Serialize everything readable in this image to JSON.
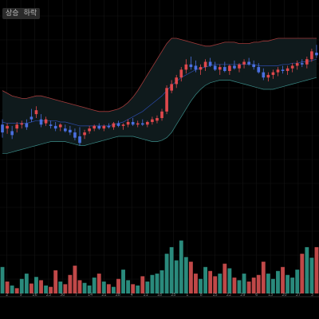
{
  "header": {
    "label_a": "상승",
    "label_b": "하락"
  },
  "chart_data": [
    {
      "type": "candlestick",
      "name": "price",
      "bollinger": true,
      "grid": true,
      "colors": {
        "up": "#e0484c",
        "down": "#4a6fe0",
        "band_fill": "#0f1a1c",
        "band_line": "#a33b3b",
        "mid_line": "#2b4aa8",
        "mid_line_2": "#3a8a86"
      },
      "ylim": [
        0,
        100
      ],
      "bars": [
        {
          "o": 34,
          "h": 38,
          "l": 24,
          "c": 28
        },
        {
          "o": 31,
          "h": 35,
          "l": 27,
          "c": 33
        },
        {
          "o": 29,
          "h": 33,
          "l": 23,
          "c": 26
        },
        {
          "o": 31,
          "h": 36,
          "l": 28,
          "c": 34
        },
        {
          "o": 34,
          "h": 37,
          "l": 31,
          "c": 35
        },
        {
          "o": 35,
          "h": 38,
          "l": 30,
          "c": 32
        },
        {
          "o": 40,
          "h": 46,
          "l": 36,
          "c": 38
        },
        {
          "o": 42,
          "h": 48,
          "l": 39,
          "c": 45
        },
        {
          "o": 38,
          "h": 42,
          "l": 32,
          "c": 34
        },
        {
          "o": 35,
          "h": 40,
          "l": 33,
          "c": 38
        },
        {
          "o": 34,
          "h": 37,
          "l": 31,
          "c": 33
        },
        {
          "o": 33,
          "h": 36,
          "l": 29,
          "c": 31
        },
        {
          "o": 32,
          "h": 35,
          "l": 29,
          "c": 34
        },
        {
          "o": 31,
          "h": 34,
          "l": 28,
          "c": 29
        },
        {
          "o": 30,
          "h": 33,
          "l": 26,
          "c": 28
        },
        {
          "o": 28,
          "h": 31,
          "l": 22,
          "c": 24
        },
        {
          "o": 25,
          "h": 32,
          "l": 18,
          "c": 20
        },
        {
          "o": 26,
          "h": 30,
          "l": 23,
          "c": 28
        },
        {
          "o": 29,
          "h": 33,
          "l": 27,
          "c": 31
        },
        {
          "o": 31,
          "h": 34,
          "l": 29,
          "c": 33
        },
        {
          "o": 33,
          "h": 35,
          "l": 30,
          "c": 31
        },
        {
          "o": 31,
          "h": 34,
          "l": 29,
          "c": 33
        },
        {
          "o": 33,
          "h": 35,
          "l": 31,
          "c": 32
        },
        {
          "o": 32,
          "h": 36,
          "l": 30,
          "c": 35
        },
        {
          "o": 35,
          "h": 37,
          "l": 32,
          "c": 33
        },
        {
          "o": 33,
          "h": 35,
          "l": 30,
          "c": 34
        },
        {
          "o": 34,
          "h": 38,
          "l": 32,
          "c": 36
        },
        {
          "o": 36,
          "h": 39,
          "l": 33,
          "c": 34
        },
        {
          "o": 34,
          "h": 37,
          "l": 32,
          "c": 35
        },
        {
          "o": 35,
          "h": 38,
          "l": 33,
          "c": 34
        },
        {
          "o": 34,
          "h": 37,
          "l": 32,
          "c": 36
        },
        {
          "o": 36,
          "h": 40,
          "l": 34,
          "c": 38
        },
        {
          "o": 37,
          "h": 41,
          "l": 35,
          "c": 39
        },
        {
          "o": 39,
          "h": 46,
          "l": 37,
          "c": 44
        },
        {
          "o": 44,
          "h": 64,
          "l": 42,
          "c": 62
        },
        {
          "o": 60,
          "h": 68,
          "l": 58,
          "c": 65
        },
        {
          "o": 65,
          "h": 72,
          "l": 62,
          "c": 70
        },
        {
          "o": 70,
          "h": 78,
          "l": 67,
          "c": 76
        },
        {
          "o": 76,
          "h": 84,
          "l": 73,
          "c": 80
        },
        {
          "o": 80,
          "h": 86,
          "l": 76,
          "c": 78
        },
        {
          "o": 79,
          "h": 83,
          "l": 74,
          "c": 76
        },
        {
          "o": 76,
          "h": 80,
          "l": 72,
          "c": 78
        },
        {
          "o": 78,
          "h": 84,
          "l": 75,
          "c": 82
        },
        {
          "o": 82,
          "h": 85,
          "l": 78,
          "c": 79
        },
        {
          "o": 79,
          "h": 82,
          "l": 75,
          "c": 76
        },
        {
          "o": 76,
          "h": 80,
          "l": 72,
          "c": 78
        },
        {
          "o": 78,
          "h": 82,
          "l": 74,
          "c": 75
        },
        {
          "o": 75,
          "h": 80,
          "l": 72,
          "c": 79
        },
        {
          "o": 79,
          "h": 83,
          "l": 76,
          "c": 77
        },
        {
          "o": 77,
          "h": 81,
          "l": 74,
          "c": 80
        },
        {
          "o": 80,
          "h": 84,
          "l": 77,
          "c": 82
        },
        {
          "o": 82,
          "h": 85,
          "l": 79,
          "c": 80
        },
        {
          "o": 80,
          "h": 83,
          "l": 76,
          "c": 78
        },
        {
          "o": 78,
          "h": 81,
          "l": 73,
          "c": 74
        },
        {
          "o": 74,
          "h": 77,
          "l": 68,
          "c": 70
        },
        {
          "o": 70,
          "h": 74,
          "l": 67,
          "c": 72
        },
        {
          "o": 72,
          "h": 76,
          "l": 69,
          "c": 74
        },
        {
          "o": 74,
          "h": 78,
          "l": 71,
          "c": 76
        },
        {
          "o": 76,
          "h": 79,
          "l": 73,
          "c": 75
        },
        {
          "o": 75,
          "h": 79,
          "l": 72,
          "c": 77
        },
        {
          "o": 77,
          "h": 81,
          "l": 74,
          "c": 79
        },
        {
          "o": 79,
          "h": 83,
          "l": 76,
          "c": 81
        },
        {
          "o": 81,
          "h": 84,
          "l": 78,
          "c": 80
        },
        {
          "o": 80,
          "h": 86,
          "l": 77,
          "c": 84
        },
        {
          "o": 84,
          "h": 92,
          "l": 82,
          "c": 90
        },
        {
          "o": 89,
          "h": 95,
          "l": 85,
          "c": 87
        }
      ],
      "bands": {
        "upper": [
          60,
          58,
          56,
          55,
          54,
          54,
          55,
          56,
          56,
          55,
          54,
          53,
          52,
          51,
          50,
          49,
          48,
          47,
          46,
          45,
          44,
          44,
          44,
          45,
          46,
          48,
          51,
          55,
          60,
          66,
          72,
          78,
          84,
          90,
          96,
          100,
          100,
          99,
          98,
          97,
          96,
          95,
          94,
          94,
          95,
          96,
          97,
          97,
          97,
          96,
          96,
          96,
          97,
          97,
          98,
          98,
          99,
          100,
          100,
          100,
          100,
          100,
          100,
          100,
          100,
          100
        ],
        "lower": [
          12,
          12,
          13,
          14,
          15,
          16,
          17,
          18,
          19,
          20,
          21,
          21,
          21,
          21,
          20,
          19,
          18,
          18,
          19,
          20,
          21,
          22,
          23,
          24,
          25,
          25,
          25,
          25,
          24,
          23,
          22,
          21,
          21,
          22,
          24,
          28,
          34,
          40,
          46,
          52,
          57,
          61,
          64,
          66,
          67,
          68,
          68,
          68,
          67,
          66,
          65,
          64,
          63,
          62,
          61,
          61,
          61,
          62,
          63,
          64,
          65,
          66,
          67,
          68,
          69,
          70
        ],
        "middle": [
          36,
          35,
          35,
          35,
          35,
          35,
          36,
          37,
          37,
          37,
          37,
          37,
          36,
          36,
          35,
          34,
          33,
          33,
          33,
          33,
          33,
          33,
          33,
          34,
          35,
          36,
          38,
          40,
          42,
          44,
          47,
          50,
          53,
          56,
          60,
          64,
          67,
          70,
          72,
          74,
          76,
          77,
          78,
          79,
          80,
          80,
          80,
          80,
          80,
          80,
          80,
          80,
          80,
          79,
          79,
          79,
          79,
          79,
          80,
          80,
          81,
          81,
          82,
          82,
          83,
          84
        ]
      },
      "x_tick_labels": [
        "2",
        "9",
        "16",
        "23",
        "30",
        "7",
        "14",
        "21",
        "28",
        "4",
        "11",
        "18",
        "25",
        "1",
        "8",
        "15",
        "22",
        "29",
        "6",
        "13",
        "20",
        "27",
        "3"
      ]
    },
    {
      "type": "bar",
      "name": "volume",
      "colors": {
        "up": "#2a8a7c",
        "down": "#c04848"
      },
      "ylim": [
        0,
        100
      ],
      "values": [
        40,
        18,
        12,
        8,
        22,
        30,
        15,
        25,
        20,
        12,
        10,
        35,
        18,
        14,
        28,
        42,
        20,
        16,
        12,
        24,
        30,
        18,
        14,
        10,
        22,
        36,
        20,
        14,
        12,
        26,
        18,
        28,
        30,
        35,
        60,
        70,
        50,
        80,
        55,
        48,
        30,
        22,
        40,
        34,
        26,
        30,
        45,
        38,
        24,
        20,
        30,
        18,
        24,
        28,
        48,
        30,
        22,
        34,
        40,
        28,
        24,
        36,
        60,
        70,
        54,
        70
      ],
      "up": [
        1,
        0,
        1,
        0,
        1,
        1,
        0,
        1,
        0,
        1,
        0,
        0,
        1,
        0,
        0,
        0,
        0,
        1,
        1,
        1,
        0,
        1,
        0,
        1,
        0,
        1,
        1,
        0,
        1,
        0,
        1,
        1,
        1,
        1,
        1,
        1,
        1,
        1,
        1,
        0,
        0,
        1,
        1,
        0,
        0,
        1,
        0,
        1,
        0,
        1,
        1,
        0,
        0,
        0,
        0,
        1,
        1,
        1,
        0,
        1,
        1,
        1,
        0,
        1,
        1,
        0
      ]
    }
  ]
}
